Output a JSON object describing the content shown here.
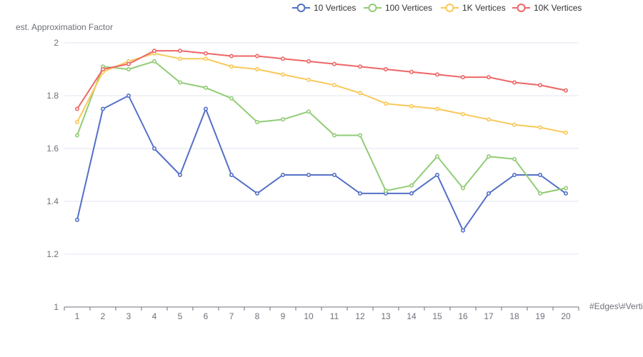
{
  "chart_data": {
    "type": "line",
    "xlabel": "#Edges\\#Vertices",
    "ylabel": "est. Approximation Factor",
    "x": [
      1,
      2,
      3,
      4,
      5,
      6,
      7,
      8,
      9,
      10,
      11,
      12,
      13,
      14,
      15,
      16,
      17,
      18,
      19,
      20
    ],
    "ylim": [
      1,
      2
    ],
    "yticks": [
      1,
      1.2,
      1.4,
      1.6,
      1.8,
      2
    ],
    "grid": true,
    "legend_position": "top-right",
    "series": [
      {
        "name": "10 Vertices",
        "color": "#5470c6",
        "values": [
          1.33,
          1.75,
          1.8,
          1.6,
          1.5,
          1.75,
          1.5,
          1.43,
          1.5,
          1.5,
          1.5,
          1.43,
          1.43,
          1.43,
          1.5,
          1.29,
          1.43,
          1.5,
          1.5,
          1.43
        ]
      },
      {
        "name": "100 Vertices",
        "color": "#91cc75",
        "values": [
          1.65,
          1.91,
          1.9,
          1.93,
          1.85,
          1.83,
          1.79,
          1.7,
          1.71,
          1.74,
          1.65,
          1.65,
          1.44,
          1.46,
          1.57,
          1.45,
          1.57,
          1.56,
          1.43,
          1.45
        ]
      },
      {
        "name": "1K Vertices",
        "color": "#fac858",
        "values": [
          1.7,
          1.89,
          1.93,
          1.96,
          1.94,
          1.94,
          1.91,
          1.9,
          1.88,
          1.86,
          1.84,
          1.81,
          1.77,
          1.76,
          1.75,
          1.73,
          1.71,
          1.69,
          1.68,
          1.66
        ]
      },
      {
        "name": "10K Vertices",
        "color": "#ee6666",
        "values": [
          1.75,
          1.9,
          1.92,
          1.97,
          1.97,
          1.96,
          1.95,
          1.95,
          1.94,
          1.93,
          1.92,
          1.91,
          1.9,
          1.89,
          1.88,
          1.87,
          1.87,
          1.85,
          1.84,
          1.82
        ]
      }
    ]
  }
}
